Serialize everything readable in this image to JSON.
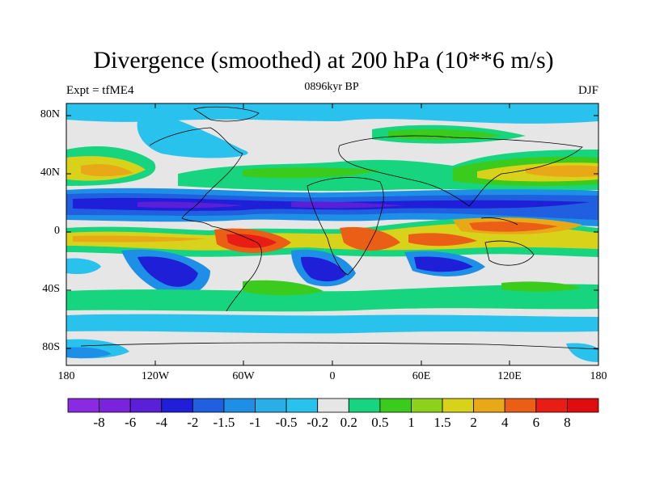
{
  "title": "Divergence (smoothed) at 200 hPa (10**6 m/s)",
  "left_string": "Expt = tfME4",
  "center_string": "0896kyr BP",
  "right_string": "DJF",
  "y_axis_labels": [
    "80N",
    "40N",
    "0",
    "40S",
    "80S"
  ],
  "x_axis_labels": [
    "180",
    "120W",
    "60W",
    "0",
    "60E",
    "120E",
    "180"
  ],
  "colorbar": {
    "labels": [
      "-8",
      "-6",
      "-4",
      "-2",
      "-1.5",
      "-1",
      "-0.5",
      "-0.2",
      "0.2",
      "0.5",
      "1",
      "1.5",
      "2",
      "4",
      "6",
      "8"
    ],
    "colors": [
      "#8A2BE2",
      "#7B22DC",
      "#5A1FD6",
      "#1F1FD8",
      "#1F5FE0",
      "#1E8FE6",
      "#2AAEE8",
      "#29C2EC",
      "#E6E6E6",
      "#17D47F",
      "#3BCB1C",
      "#8CD21A",
      "#D8D21A",
      "#E9A818",
      "#EA5E16",
      "#E81D16",
      "#E00D10"
    ]
  }
}
